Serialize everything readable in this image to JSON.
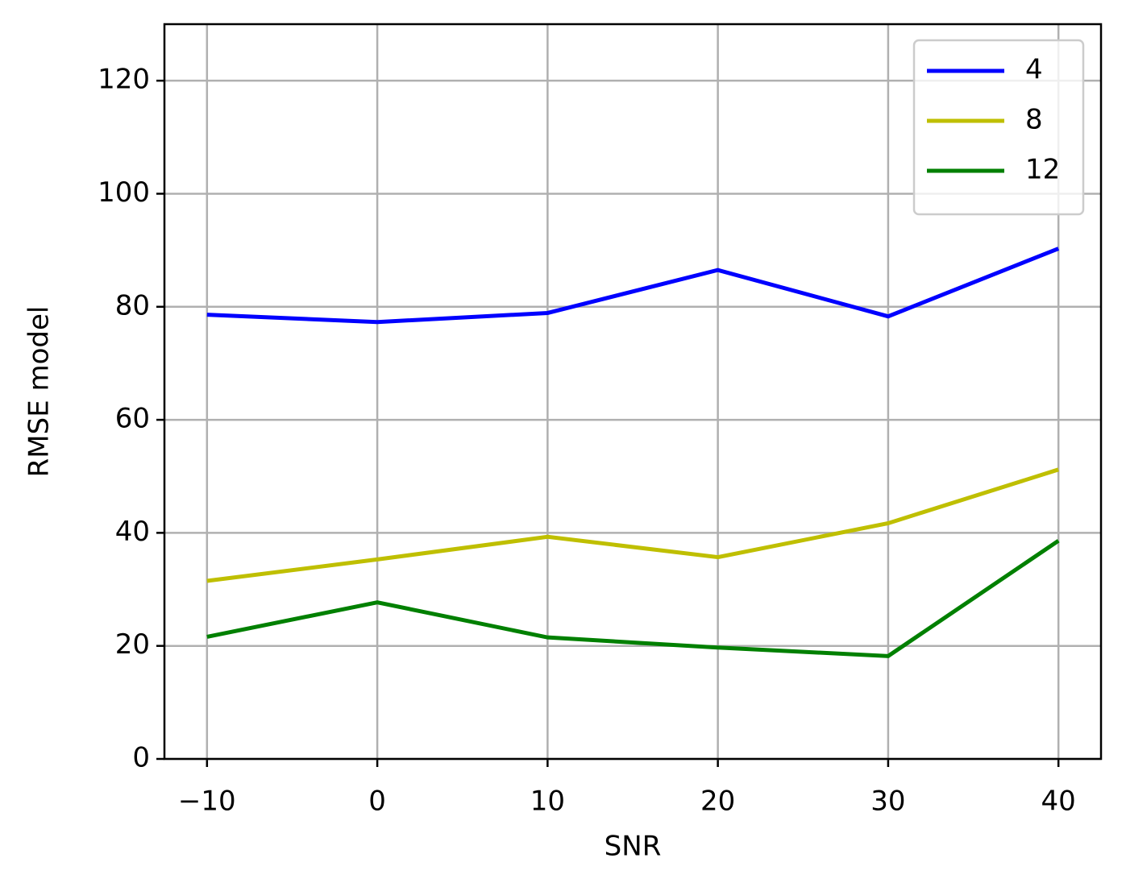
{
  "chart_data": {
    "type": "line",
    "x_label": "SNR",
    "y_label": "RMSE model",
    "x": [
      -10,
      0,
      10,
      20,
      30,
      40
    ],
    "series": [
      {
        "name": "4",
        "color": "#0000ff",
        "values": [
          78.6,
          77.3,
          78.9,
          86.5,
          78.3,
          90.3
        ]
      },
      {
        "name": "8",
        "color": "#bfbf00",
        "values": [
          31.5,
          35.3,
          39.3,
          35.7,
          41.7,
          51.2
        ]
      },
      {
        "name": "12",
        "color": "#008000",
        "values": [
          21.6,
          27.7,
          21.5,
          19.7,
          18.2,
          38.6
        ]
      }
    ],
    "xlim": [
      -12.5,
      42.5
    ],
    "xticks": [
      {
        "value": -10,
        "label": "−10"
      },
      0,
      10,
      20,
      30,
      40
    ],
    "ylim": [
      0,
      130
    ],
    "yticks": [
      0,
      20,
      40,
      60,
      80,
      100,
      120
    ],
    "grid": true,
    "legend": "upper right"
  }
}
